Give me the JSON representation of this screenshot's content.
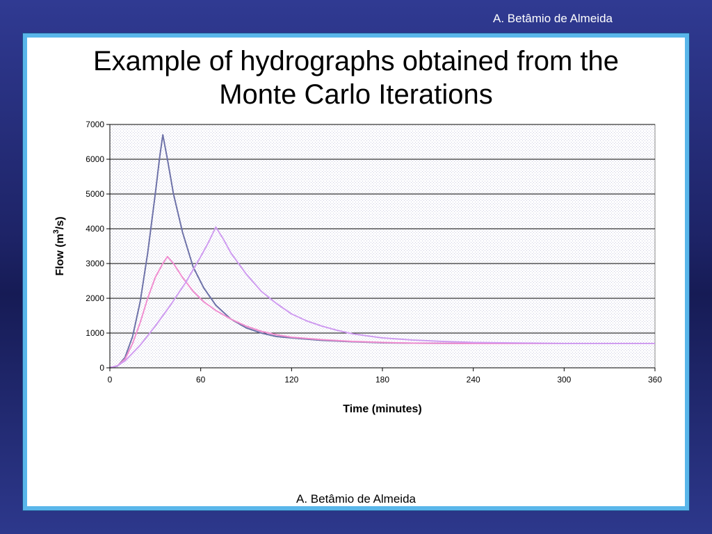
{
  "header_author": "A. Betâmio de Almeida",
  "footer_author": "A. Betâmio de Almeida",
  "slide_title_line1": "Example of hydrographs obtained from the",
  "slide_title_line2": "Monte Carlo Iterations",
  "chart_data": {
    "type": "line",
    "title": "",
    "xlabel": "Time (minutes)",
    "ylabel_prefix": "Flow (m",
    "ylabel_sup": "3",
    "ylabel_suffix": "/s)",
    "xlim": [
      0,
      360
    ],
    "ylim": [
      0,
      7000
    ],
    "x_ticks": [
      0,
      60,
      120,
      180,
      240,
      300,
      360
    ],
    "y_ticks": [
      0,
      1000,
      2000,
      3000,
      4000,
      5000,
      6000,
      7000
    ],
    "grid": "horizontal",
    "series": [
      {
        "color": "#6e72a8",
        "x": [
          0,
          5,
          10,
          15,
          20,
          25,
          30,
          33,
          35,
          38,
          42,
          48,
          55,
          62,
          70,
          80,
          90,
          100,
          110,
          120,
          140,
          160,
          180,
          200,
          240,
          280,
          320,
          360
        ],
        "y": [
          0,
          50,
          300,
          900,
          1900,
          3300,
          5000,
          6100,
          6700,
          6000,
          5000,
          3900,
          2900,
          2300,
          1800,
          1400,
          1150,
          1000,
          900,
          860,
          790,
          750,
          720,
          710,
          700,
          700,
          700,
          700
        ]
      },
      {
        "color": "#f08ed0",
        "x": [
          0,
          5,
          10,
          15,
          20,
          25,
          30,
          35,
          38,
          42,
          48,
          55,
          62,
          70,
          80,
          90,
          100,
          110,
          120,
          140,
          160,
          180,
          200,
          240,
          280,
          320,
          360
        ],
        "y": [
          0,
          60,
          250,
          700,
          1300,
          2000,
          2600,
          3000,
          3200,
          3000,
          2600,
          2200,
          1900,
          1650,
          1400,
          1200,
          1050,
          950,
          880,
          810,
          760,
          730,
          710,
          700,
          700,
          700,
          700
        ]
      },
      {
        "color": "#cf9cf0",
        "x": [
          0,
          5,
          10,
          20,
          30,
          40,
          50,
          60,
          65,
          70,
          75,
          80,
          90,
          100,
          110,
          120,
          130,
          140,
          150,
          160,
          180,
          200,
          220,
          240,
          260,
          280,
          300,
          320,
          340,
          360
        ],
        "y": [
          0,
          60,
          200,
          650,
          1200,
          1800,
          2450,
          3200,
          3600,
          4050,
          3700,
          3300,
          2700,
          2200,
          1850,
          1550,
          1350,
          1200,
          1080,
          980,
          860,
          800,
          760,
          730,
          720,
          710,
          700,
          700,
          700,
          700
        ]
      }
    ]
  }
}
